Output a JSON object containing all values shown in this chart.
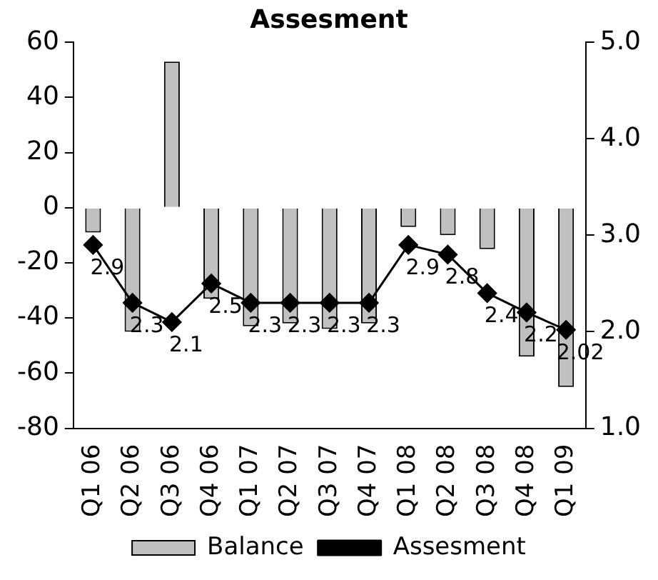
{
  "chart_data": {
    "type": "bar",
    "title": "Assesment",
    "categories": [
      "Q1 06",
      "Q2 06",
      "Q3 06",
      "Q4 06",
      "Q1 07",
      "Q2 07",
      "Q3 07",
      "Q4 07",
      "Q1 08",
      "Q2 08",
      "Q3 08",
      "Q4 08",
      "Q1 09"
    ],
    "series": [
      {
        "name": "Balance",
        "color": "#c0c0c0",
        "values": [
          -9,
          -45,
          53,
          -33,
          -43,
          -42,
          -44,
          -42,
          -7,
          -10,
          -15,
          -54,
          -65
        ]
      },
      {
        "name": "Assesment",
        "type": "line",
        "axis": "y2",
        "color": "#000000",
        "marker": "diamond",
        "data_labels": true,
        "values": [
          2.9,
          2.3,
          2.1,
          2.5,
          2.3,
          2.3,
          2.3,
          2.3,
          2.9,
          2.8,
          2.4,
          2.2,
          2.02
        ]
      }
    ],
    "ylim": [
      -80,
      60
    ],
    "yticks": [
      -80,
      -60,
      -40,
      -20,
      0,
      20,
      40,
      60
    ],
    "y2lim": [
      1,
      5
    ],
    "y2ticks": [
      {
        "value": 1,
        "label": "1.0"
      },
      {
        "value": 2,
        "label": "2.0"
      },
      {
        "value": 3,
        "label": "3.0"
      },
      {
        "value": 4,
        "label": "4.0"
      },
      {
        "value": 5,
        "label": "5.0"
      }
    ],
    "grid": false,
    "legend": "bottom"
  }
}
